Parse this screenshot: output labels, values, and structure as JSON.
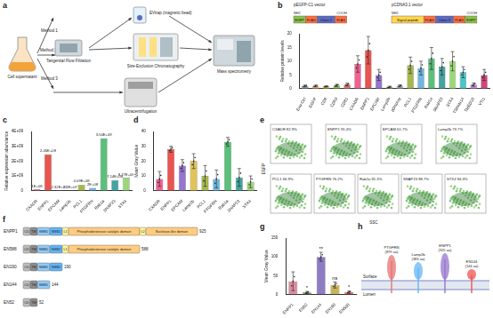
{
  "panel_a": {
    "letter": "a",
    "source": "Cell supernatant",
    "methods": [
      "Method 1",
      "Method 2",
      "Method 3"
    ],
    "steps": [
      "Tangential Flow Filtration",
      "EVtrap (magnetic bead)",
      "Size-Exclusion Chromatography",
      "Ultracentrifugation"
    ],
    "output": "Mass spectrometry"
  },
  "chart_data": [
    {
      "letter": "b",
      "type": "bar",
      "y_label": "Relative protein levels",
      "constructs": [
        {
          "name": "pEGFP-C1 vector",
          "ends": [
            "NH2",
            "COOH"
          ],
          "parts": [
            "EGFP",
            "FLAG",
            "Class 2",
            "FLAG"
          ]
        },
        {
          "name": "pCDNA3.1 vector",
          "ends": [
            "NH2",
            "COOH"
          ],
          "parts": [
            "Signal peptide",
            "FLAG",
            "Class 3",
            "FLAG",
            "EGFP"
          ]
        }
      ],
      "categories": [
        "Exo-Ctrl",
        "EGFP",
        "CD9",
        "CD63",
        "CD81",
        "CXADR",
        "ENPP1",
        "EPCAM",
        "Lamp2b",
        "pDisplay",
        "PCL1",
        "PTGFRN",
        "Rab1a",
        "SNAP23",
        "STX4",
        "TSPAN14",
        "TMED10",
        "VTI1"
      ],
      "values": [
        1,
        1,
        0.8,
        1.2,
        1.5,
        9,
        14,
        5,
        0.6,
        1,
        8.5,
        7.5,
        11,
        8,
        10,
        6,
        1.5,
        5
      ],
      "errors": [
        0.3,
        0.3,
        0.2,
        0.4,
        0.5,
        3,
        5,
        2,
        0.3,
        0.4,
        3,
        2.5,
        4,
        3,
        3.5,
        2,
        0.6,
        2
      ],
      "colors": [
        "#9e9e9e",
        "#f4a460",
        "#e8c547",
        "#8bc34a",
        "#e57373",
        "#f06292",
        "#e8554e",
        "#9575cd",
        "#e0c35a",
        "#bdbdbd",
        "#a5b84f",
        "#6fb7e0",
        "#5cbf7a",
        "#45a3a0",
        "#9dd67a",
        "#4fc3c7",
        "#c48bd9",
        "#d2457a"
      ],
      "ylim": [
        0,
        20
      ],
      "yticks": [
        0,
        5,
        10,
        15,
        20
      ],
      "grid": false
    },
    {
      "letter": "c",
      "type": "bar",
      "y_label": "Relative expression abundance",
      "categories": [
        "CXADR",
        "ENPP1",
        "EPCAM",
        "Lamp2b",
        "PCL1",
        "PTGFRN",
        "Rab1a",
        "SNAP23",
        "STX4"
      ],
      "values": [
        100000000,
        2450000000,
        23200000,
        22000000,
        409000000,
        200000000,
        3540000000,
        714000000,
        877000000
      ],
      "value_labels": [
        "1E+08",
        "2.45E+09",
        "2.32E+07",
        "2.2E+07",
        "4.09E+08",
        "2E+08",
        "3.54E+09",
        "7.14E+08",
        "8.77E+08"
      ],
      "data_labels": true,
      "colors": [
        "#f06292",
        "#e8554e",
        "#9575cd",
        "#e0c35a",
        "#a5b84f",
        "#6fb7e0",
        "#5cbf7a",
        "#45a3a0",
        "#9dd67a"
      ],
      "ylim": [
        0,
        4000000000
      ],
      "yticks": [
        0,
        {
          "value": 1000000000,
          "label": "1E+09"
        },
        {
          "value": 2000000000,
          "label": "2E+09"
        },
        {
          "value": 3000000000,
          "label": "3E+09"
        },
        {
          "value": 4000000000,
          "label": "4E+09"
        }
      ],
      "grid": false
    },
    {
      "letter": "d",
      "type": "bar",
      "y_label": "Mean Gray Value",
      "categories": [
        "CXADR",
        "ENPP1",
        "EPCAM",
        "Lamp2b",
        "PCL1",
        "PTGFRN",
        "Rab1a",
        "SNAP23",
        "STX4"
      ],
      "values": [
        8,
        28,
        17,
        20,
        10,
        8,
        33,
        9,
        6
      ],
      "errors": [
        5,
        2,
        4,
        5,
        7,
        6,
        3,
        6,
        4
      ],
      "colors": [
        "#f06292",
        "#e8554e",
        "#9575cd",
        "#e0c35a",
        "#a5b84f",
        "#6fb7e0",
        "#5cbf7a",
        "#45a3a0",
        "#9dd67a"
      ],
      "ylim": [
        0,
        40
      ],
      "yticks": [
        0,
        10,
        20,
        30,
        40
      ],
      "grid": false
    },
    {
      "letter": "g",
      "type": "bar",
      "y_label": "Mean Gray Value",
      "categories": [
        "ENPP1",
        "EN52",
        "EN144",
        "EN190",
        "EN588"
      ],
      "values": [
        35,
        5,
        100,
        25,
        6
      ],
      "errors": [
        25,
        3,
        12,
        8,
        3
      ],
      "significance": [
        null,
        "*",
        "**",
        "ns",
        "*"
      ],
      "colors": [
        "#d98fa0",
        "#6aa84f",
        "#8e7cc3",
        "#c9b458",
        "#e06666"
      ],
      "ylim": [
        0,
        150
      ],
      "yticks": [
        0,
        50,
        100,
        150
      ],
      "grid": false
    }
  ],
  "panel_e": {
    "letter": "e",
    "x_label": "SSC",
    "y_label": "EGFP",
    "plots": [
      "CXADR 82.9%",
      "ENPP1 91.4%",
      "EPCAM 61.7%",
      "Lamp2b 73.7%",
      "PCL1 66.9%",
      "PTGFRN 76.2%",
      "Rab1a 91.3%",
      "SNAP23 88.7%",
      "STX4 94.3%"
    ]
  },
  "panel_f": {
    "letter": "f",
    "rows": [
      {
        "name": "ENPP1",
        "length": "925",
        "domains": [
          "CD",
          "TM",
          "SMB1",
          "SMB2",
          "L1",
          "Phosphodiesterase catalytic domain",
          "L2",
          "Nuclease-like domain"
        ]
      },
      {
        "name": "EN588",
        "length": "588",
        "domains": [
          "CD",
          "TM",
          "SMB1",
          "SMB2",
          "L1",
          "Phosphodiesterase catalytic domain"
        ]
      },
      {
        "name": "EN190",
        "length": "190",
        "domains": [
          "CD",
          "TM",
          "SMB1",
          "SMB2"
        ]
      },
      {
        "name": "EN144",
        "length": "144",
        "domains": [
          "CD",
          "TM",
          "SMB1"
        ]
      },
      {
        "name": "EN52",
        "length": "52",
        "domains": [
          "CD",
          "TM"
        ]
      }
    ]
  },
  "panel_h": {
    "letter": "h",
    "surface": "Surface",
    "lumen": "Lumen",
    "proteins": [
      "PTGFRN (879 aa)",
      "Lamp2b (383 aa)",
      "ENPP1 (925 aa)",
      "EN144 (144 aa)"
    ]
  }
}
